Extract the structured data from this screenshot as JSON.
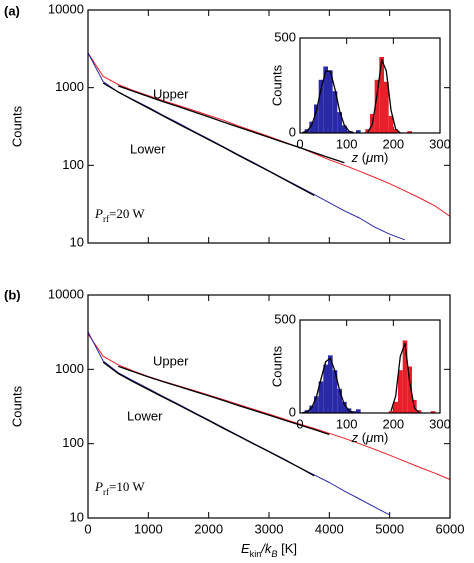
{
  "chart_data": [
    {
      "type": "line",
      "log_y": true,
      "panel_label": "(a)",
      "ylabel": "Counts",
      "annotation": [
        "P",
        "rf",
        "=20 W"
      ],
      "xlim": [
        0,
        6000
      ],
      "xticks": [
        0,
        1000,
        2000,
        3000,
        4000,
        5000,
        6000
      ],
      "ylim": [
        10,
        10000
      ],
      "yticks": [
        10,
        100,
        1000,
        10000
      ],
      "x": [
        0,
        250,
        500,
        750,
        1000,
        1250,
        1500,
        1750,
        2000,
        2250,
        2500,
        2750,
        3000,
        3250,
        3500,
        3750,
        4000,
        4250,
        4500,
        4750,
        5000,
        5250,
        5500,
        5750,
        6000
      ],
      "series": [
        {
          "name": "Upper",
          "color": "#e8202a",
          "values": [
            2800,
            1400,
            1100,
            920,
            790,
            680,
            590,
            510,
            440,
            380,
            320,
            275,
            235,
            200,
            170,
            142,
            118,
            100,
            84,
            70,
            58,
            47,
            38,
            30,
            22
          ]
        },
        {
          "name": "Lower",
          "color": "#2a2aa8",
          "values": [
            2800,
            1200,
            880,
            700,
            560,
            440,
            350,
            275,
            218,
            172,
            136,
            108,
            85,
            67,
            53,
            42,
            33,
            26,
            21,
            16,
            13,
            11,
            null,
            null,
            null
          ]
        },
        {
          "color": "#000000",
          "values": [
            null,
            null,
            1050,
            900,
            770,
            660,
            570,
            490,
            420,
            360,
            310,
            266,
            229,
            197,
            170,
            146,
            125,
            108,
            null,
            null,
            null,
            null,
            null,
            null,
            null
          ]
        },
        {
          "color": "#000000",
          "values": [
            null,
            1150,
            880,
            690,
            545,
            430,
            340,
            270,
            214,
            170,
            134,
            106,
            84,
            66,
            52,
            41,
            null,
            null,
            null,
            null,
            null,
            null,
            null,
            null,
            null
          ]
        }
      ]
    },
    {
      "type": "histogram",
      "ylabel": "Counts",
      "xlabel": [
        "z",
        " (",
        "μ",
        "m)"
      ],
      "xlim": [
        0,
        300
      ],
      "xticks": [
        0,
        100,
        200,
        300
      ],
      "ylim": [
        0,
        500
      ],
      "yticks": [
        0,
        500
      ],
      "bins": [
        0,
        10,
        20,
        30,
        40,
        50,
        60,
        70,
        80,
        90,
        100,
        110,
        120,
        130,
        140,
        150,
        160,
        170,
        180,
        190,
        200,
        210,
        220,
        230,
        240,
        250,
        260,
        270,
        280,
        290,
        300
      ],
      "series": [
        {
          "color": "#2a2aa8",
          "values": [
            0,
            20,
            60,
            150,
            280,
            350,
            330,
            220,
            110,
            40,
            10,
            0,
            15,
            0,
            0,
            0,
            0,
            0,
            0,
            0,
            0,
            0,
            0,
            0,
            0,
            0,
            0,
            0,
            0,
            0
          ]
        },
        {
          "color": "#e8202a",
          "values": [
            0,
            0,
            0,
            0,
            0,
            0,
            0,
            0,
            0,
            0,
            0,
            0,
            0,
            0,
            20,
            100,
            280,
            400,
            270,
            90,
            20,
            0,
            0,
            10,
            0,
            0,
            0,
            0,
            0,
            0
          ]
        }
      ],
      "fits": [
        {
          "color": "#000000",
          "values": [
            2,
            10,
            41,
            115,
            230,
            326,
            326,
            230,
            115,
            41,
            10,
            2,
            null,
            null,
            null,
            null,
            null,
            null,
            null,
            null,
            null,
            null,
            null,
            null,
            null,
            null,
            null,
            null,
            null,
            null
          ]
        },
        {
          "color": "#000000",
          "values": [
            null,
            null,
            null,
            null,
            null,
            null,
            null,
            null,
            null,
            null,
            null,
            null,
            null,
            null,
            4,
            45,
            199,
            385,
            327,
            121,
            20,
            1,
            null,
            null,
            null,
            null,
            null,
            null,
            null,
            null
          ]
        }
      ]
    },
    {
      "type": "line",
      "log_y": true,
      "panel_label": "(b)",
      "ylabel": "Counts",
      "annotation": [
        "P",
        "rf",
        "=10 W"
      ],
      "xlabel": [
        "E",
        "kin",
        "/k",
        "B",
        " [K]"
      ],
      "xlim": [
        0,
        6000
      ],
      "xticks": [
        0,
        1000,
        2000,
        3000,
        4000,
        5000,
        6000
      ],
      "ylim": [
        10,
        10000
      ],
      "yticks": [
        10,
        100,
        1000,
        10000
      ],
      "x": [
        0,
        250,
        500,
        750,
        1000,
        1250,
        1500,
        1750,
        2000,
        2250,
        2500,
        2750,
        3000,
        3250,
        3500,
        3750,
        4000,
        4250,
        4500,
        4750,
        5000,
        5250,
        5500,
        5750,
        6000
      ],
      "series": [
        {
          "name": "Upper",
          "color": "#e8202a",
          "values": [
            3000,
            1500,
            1150,
            950,
            800,
            690,
            600,
            520,
            450,
            390,
            335,
            290,
            250,
            215,
            185,
            160,
            138,
            118,
            100,
            84,
            70,
            58,
            48,
            40,
            33
          ]
        },
        {
          "name": "Lower",
          "color": "#2a2aa8",
          "values": [
            3200,
            1300,
            900,
            700,
            550,
            430,
            340,
            265,
            208,
            163,
            128,
            100,
            79,
            62,
            48,
            38,
            30,
            23,
            18,
            14,
            11,
            null,
            null,
            null,
            null
          ]
        },
        {
          "color": "#000000",
          "values": [
            null,
            null,
            1100,
            930,
            790,
            680,
            590,
            510,
            440,
            380,
            325,
            280,
            242,
            208,
            180,
            155,
            133,
            null,
            null,
            null,
            null,
            null,
            null,
            null,
            null
          ]
        },
        {
          "color": "#000000",
          "values": [
            null,
            1250,
            880,
            680,
            535,
            420,
            332,
            260,
            205,
            160,
            126,
            99,
            78,
            61,
            48,
            37,
            null,
            null,
            null,
            null,
            null,
            null,
            null,
            null,
            null
          ]
        }
      ]
    },
    {
      "type": "histogram",
      "ylabel": "Counts",
      "xlabel": [
        "z",
        " (",
        "μ",
        "m)"
      ],
      "xlim": [
        0,
        300
      ],
      "xticks": [
        0,
        100,
        200,
        300
      ],
      "ylim": [
        0,
        500
      ],
      "yticks": [
        0,
        500
      ],
      "bins": [
        0,
        10,
        20,
        30,
        40,
        50,
        60,
        70,
        80,
        90,
        100,
        110,
        120,
        130,
        140,
        150,
        160,
        170,
        180,
        190,
        200,
        210,
        220,
        230,
        240,
        250,
        260,
        270,
        280,
        290,
        300
      ],
      "series": [
        {
          "color": "#2a2aa8",
          "values": [
            0,
            15,
            40,
            90,
            170,
            260,
            310,
            230,
            130,
            60,
            25,
            10,
            20,
            0,
            0,
            0,
            0,
            0,
            0,
            0,
            0,
            0,
            0,
            0,
            0,
            0,
            0,
            0,
            0,
            0
          ]
        },
        {
          "color": "#e8202a",
          "values": [
            0,
            0,
            0,
            0,
            0,
            0,
            0,
            0,
            0,
            0,
            0,
            0,
            0,
            0,
            0,
            0,
            0,
            0,
            0,
            10,
            60,
            230,
            390,
            250,
            70,
            15,
            0,
            0,
            10,
            0
          ]
        }
      ],
      "fits": [
        {
          "color": "#000000",
          "values": [
            1,
            7,
            28,
            85,
            182,
            276,
            295,
            224,
            120,
            46,
            12,
            2,
            null,
            null,
            null,
            null,
            null,
            null,
            null,
            null,
            null,
            null,
            null,
            null,
            null,
            null,
            null,
            null,
            null,
            null
          ]
        },
        {
          "color": "#000000",
          "values": [
            null,
            null,
            null,
            null,
            null,
            null,
            null,
            null,
            null,
            null,
            null,
            null,
            null,
            null,
            null,
            null,
            null,
            null,
            null,
            10,
            92,
            305,
            373,
            167,
            28,
            2,
            null,
            null,
            null,
            null
          ]
        }
      ]
    }
  ]
}
